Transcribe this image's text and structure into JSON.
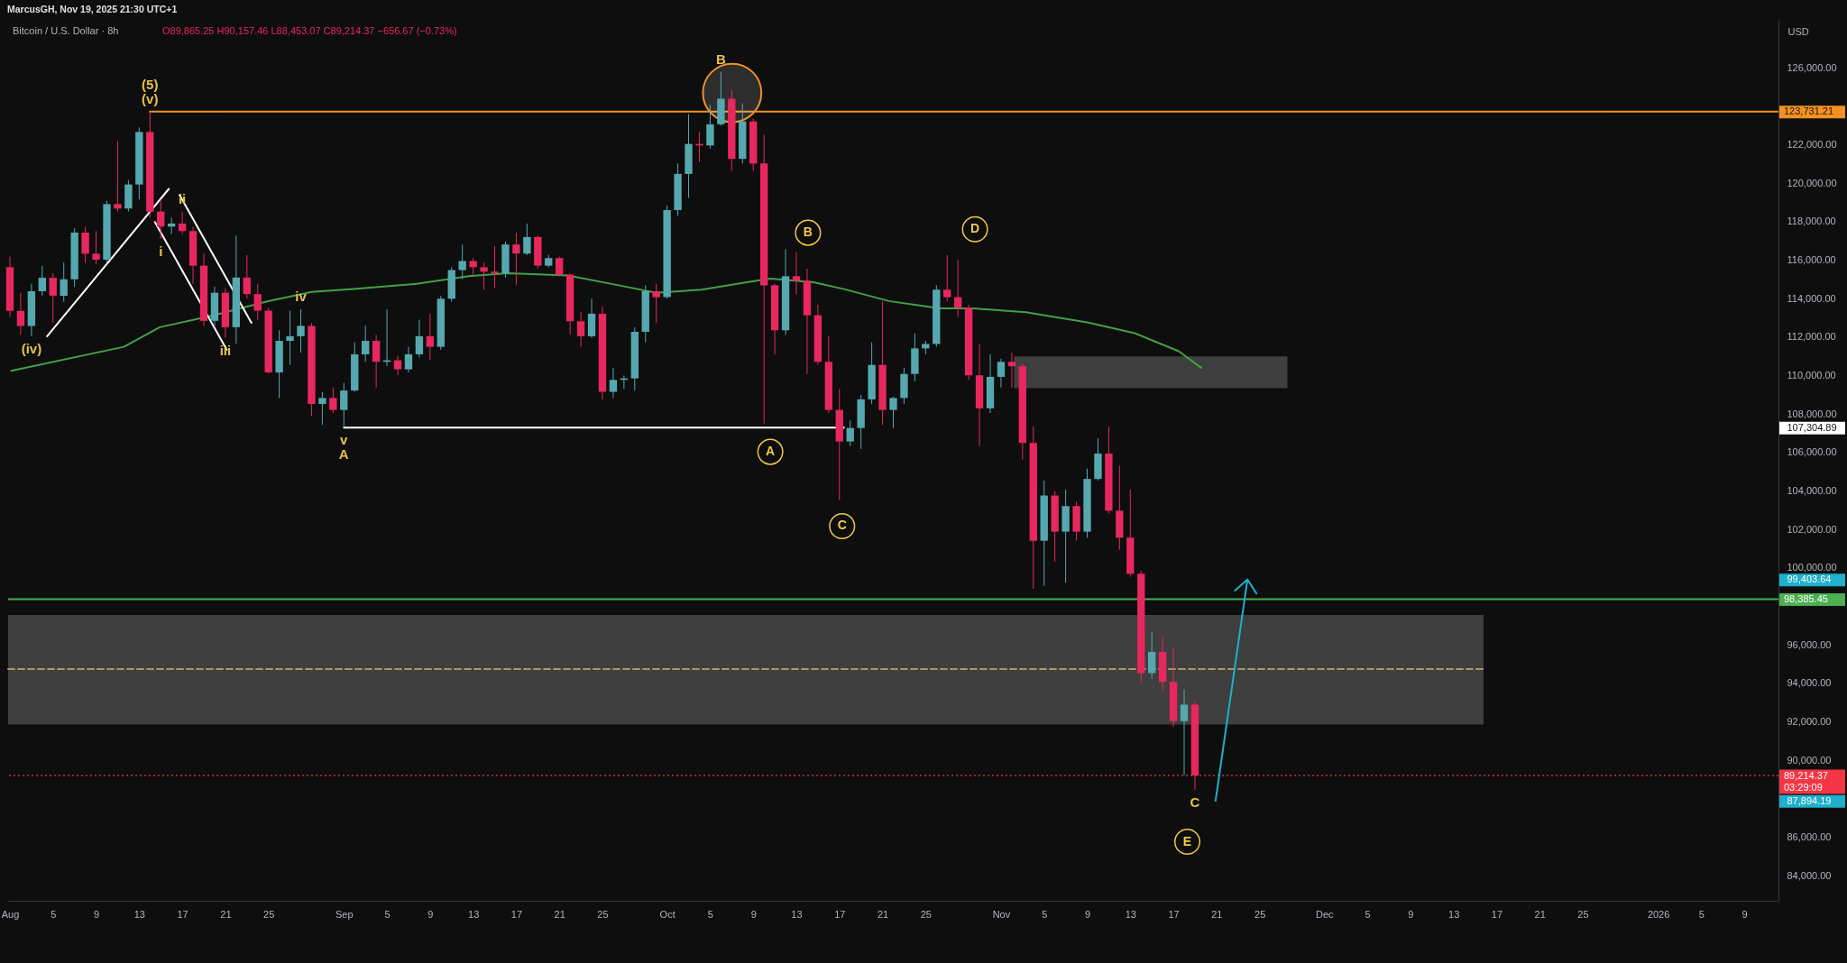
{
  "chart_data": {
    "type": "candlestick",
    "title": "Bitcoin / U.S. Dollar · 8h",
    "subtitle": "O89,865.25 H90,157.46 L88,453.07 C89,214.37 −656.67 (−0.73%)",
    "ylabel": "USD",
    "annotations": [
      "MarcusGH, Nov 19, 2025 21:30 UTC+1",
      {
        "text": "(v)",
        "x": "2025-08-14",
        "y": 123731.21
      },
      {
        "text": "(5)",
        "x": "2025-08-14",
        "y": 123731.21
      },
      {
        "text": "(iv)",
        "x": "2025-08-03",
        "y": 112050
      },
      {
        "text": "i",
        "x": "2025-08-15",
        "y": 117120
      },
      {
        "text": "ii",
        "x": "2025-08-17",
        "y": 118530
      },
      {
        "text": "iii",
        "x": "2025-08-21",
        "y": 111970
      },
      {
        "text": "iv",
        "x": "2025-08-28",
        "y": 113460
      },
      {
        "text": "v",
        "x": "2025-09-01",
        "y": 107304.89
      },
      {
        "text": "A",
        "x": "2025-09-01",
        "y": 107304.89
      },
      {
        "text": "B",
        "x": "2025-10-06",
        "y": 125800
      },
      {
        "text": "C",
        "x": "2025-11-19",
        "y": 88453.07
      }
    ],
    "xlim": [
      "2025-07-31T20:00",
      "2026-01-12T04:00"
    ],
    "ylim": [
      82700,
      128500
    ],
    "xticks": [
      {
        "value": "2025-08-01",
        "label": "Aug"
      },
      {
        "value": "2025-08-05",
        "label": "5"
      },
      {
        "value": "2025-08-09",
        "label": "9"
      },
      {
        "value": "2025-08-13",
        "label": "13"
      },
      {
        "value": "2025-08-17",
        "label": "17"
      },
      {
        "value": "2025-08-21",
        "label": "21"
      },
      {
        "value": "2025-08-25",
        "label": "25"
      },
      {
        "value": "2025-09-01",
        "label": "Sep"
      },
      {
        "value": "2025-09-05",
        "label": "5"
      },
      {
        "value": "2025-09-09",
        "label": "9"
      },
      {
        "value": "2025-09-13",
        "label": "13"
      },
      {
        "value": "2025-09-17",
        "label": "17"
      },
      {
        "value": "2025-09-21",
        "label": "21"
      },
      {
        "value": "2025-09-25",
        "label": "25"
      },
      {
        "value": "2025-10-01",
        "label": "Oct"
      },
      {
        "value": "2025-10-05",
        "label": "5"
      },
      {
        "value": "2025-10-09",
        "label": "9"
      },
      {
        "value": "2025-10-13",
        "label": "13"
      },
      {
        "value": "2025-10-17",
        "label": "17"
      },
      {
        "value": "2025-10-21",
        "label": "21"
      },
      {
        "value": "2025-10-25",
        "label": "25"
      },
      {
        "value": "2025-11-01",
        "label": "Nov"
      },
      {
        "value": "2025-11-05",
        "label": "5"
      },
      {
        "value": "2025-11-09",
        "label": "9"
      },
      {
        "value": "2025-11-13",
        "label": "13"
      },
      {
        "value": "2025-11-17",
        "label": "17"
      },
      {
        "value": "2025-11-21",
        "label": "21"
      },
      {
        "value": "2025-11-25",
        "label": "25"
      },
      {
        "value": "2025-12-01",
        "label": "Dec"
      },
      {
        "value": "2025-12-05",
        "label": "5"
      },
      {
        "value": "2025-12-09",
        "label": "9"
      },
      {
        "value": "2025-12-13",
        "label": "13"
      },
      {
        "value": "2025-12-17",
        "label": "17"
      },
      {
        "value": "2025-12-21",
        "label": "21"
      },
      {
        "value": "2025-12-25",
        "label": "25"
      },
      {
        "value": "2026-01-01",
        "label": "2026"
      },
      {
        "value": "2026-01-05",
        "label": "5"
      },
      {
        "value": "2026-01-09",
        "label": "9"
      }
    ],
    "yticks": [
      {
        "value": 84000,
        "label": "84,000.00"
      },
      {
        "value": 86000,
        "label": "86,000.00"
      },
      {
        "value": 87894.19,
        "label": "87,894.19"
      },
      {
        "value": 90000,
        "label": "90,000.00"
      },
      {
        "value": 92000,
        "label": "92,000.00"
      },
      {
        "value": 94000,
        "label": "94,000.00"
      },
      {
        "value": 96000,
        "label": "96,000.00"
      },
      {
        "value": 99403.64,
        "label": "99,403.64"
      },
      {
        "value": 100000,
        "label": "100,000.00"
      },
      {
        "value": 102000,
        "label": "102,000.00"
      },
      {
        "value": 104000,
        "label": "104,000.00"
      },
      {
        "value": 106000,
        "label": "106,000.00"
      },
      {
        "value": 107304.89,
        "label": "107,304.89"
      },
      {
        "value": 108000,
        "label": "108,000.00"
      },
      {
        "value": 110000,
        "label": "110,000.00"
      },
      {
        "value": 112000,
        "label": "112,000.00"
      },
      {
        "value": 114000,
        "label": "114,000.00"
      },
      {
        "value": 116000,
        "label": "116,000.00"
      },
      {
        "value": 118000,
        "label": "118,000.00"
      },
      {
        "value": 120000,
        "label": "120,000.00"
      },
      {
        "value": 122000,
        "label": "122,000.00"
      },
      {
        "value": 126000,
        "label": "126,000.00"
      }
    ],
    "x": [
      "2025-08-01",
      "2025-08-02",
      "2025-08-03",
      "2025-08-04",
      "2025-08-05",
      "2025-08-06",
      "2025-08-07",
      "2025-08-08",
      "2025-08-09",
      "2025-08-10",
      "2025-08-11",
      "2025-08-12",
      "2025-08-13",
      "2025-08-14",
      "2025-08-15",
      "2025-08-16",
      "2025-08-17",
      "2025-08-18",
      "2025-08-19",
      "2025-08-20",
      "2025-08-21",
      "2025-08-22",
      "2025-08-23",
      "2025-08-24",
      "2025-08-25",
      "2025-08-26",
      "2025-08-27",
      "2025-08-28",
      "2025-08-29",
      "2025-08-30",
      "2025-08-31",
      "2025-09-01",
      "2025-09-02",
      "2025-09-03",
      "2025-09-04",
      "2025-09-05",
      "2025-09-06",
      "2025-09-07",
      "2025-09-08",
      "2025-09-09",
      "2025-09-10",
      "2025-09-11",
      "2025-09-12",
      "2025-09-13",
      "2025-09-14",
      "2025-09-15",
      "2025-09-16",
      "2025-09-17",
      "2025-09-18",
      "2025-09-19",
      "2025-09-20",
      "2025-09-21",
      "2025-09-22",
      "2025-09-23",
      "2025-09-24",
      "2025-09-25",
      "2025-09-26",
      "2025-09-27",
      "2025-09-28",
      "2025-09-29",
      "2025-09-30",
      "2025-10-01",
      "2025-10-02",
      "2025-10-03",
      "2025-10-04",
      "2025-10-05",
      "2025-10-06",
      "2025-10-07",
      "2025-10-08",
      "2025-10-09",
      "2025-10-10",
      "2025-10-11",
      "2025-10-12",
      "2025-10-13",
      "2025-10-14",
      "2025-10-15",
      "2025-10-16",
      "2025-10-17",
      "2025-10-18",
      "2025-10-19",
      "2025-10-20",
      "2025-10-21",
      "2025-10-22",
      "2025-10-23",
      "2025-10-24",
      "2025-10-25",
      "2025-10-26",
      "2025-10-27",
      "2025-10-28",
      "2025-10-29",
      "2025-10-30",
      "2025-10-31",
      "2025-11-01",
      "2025-11-02",
      "2025-11-03",
      "2025-11-04",
      "2025-11-05",
      "2025-11-06",
      "2025-11-07",
      "2025-11-08",
      "2025-11-09",
      "2025-11-10",
      "2025-11-11",
      "2025-11-12",
      "2025-11-13",
      "2025-11-14",
      "2025-11-15",
      "2025-11-16",
      "2025-11-17",
      "2025-11-18",
      "2025-11-19"
    ],
    "ohlc": [
      [
        115640,
        116190,
        113060,
        113370
      ],
      [
        113370,
        114310,
        112130,
        112590
      ],
      [
        112590,
        114780,
        112050,
        114390
      ],
      [
        114390,
        115720,
        114160,
        115090
      ],
      [
        115090,
        115330,
        112750,
        114160
      ],
      [
        114160,
        115880,
        113840,
        115010
      ],
      [
        115010,
        117670,
        114620,
        117440
      ],
      [
        117440,
        117750,
        115870,
        116340
      ],
      [
        116340,
        117520,
        115800,
        116030
      ],
      [
        116030,
        119080,
        115870,
        118920
      ],
      [
        118920,
        122200,
        118530,
        118690
      ],
      [
        118690,
        120170,
        118530,
        119940
      ],
      [
        119940,
        122910,
        119160,
        122670
      ],
      [
        122670,
        123731.21,
        118220,
        118530
      ],
      [
        118530,
        119160,
        117120,
        117750
      ],
      [
        117750,
        118220,
        117360,
        117910
      ],
      [
        117910,
        118530,
        117360,
        117520
      ],
      [
        117520,
        117750,
        114780,
        115720
      ],
      [
        115720,
        116340,
        112600,
        112850
      ],
      [
        112850,
        114630,
        112520,
        114310
      ],
      [
        114310,
        114550,
        111970,
        112520
      ],
      [
        112520,
        117280,
        111660,
        115100
      ],
      [
        115100,
        116270,
        114000,
        114240
      ],
      [
        114240,
        114780,
        112910,
        113380
      ],
      [
        113380,
        113530,
        110100,
        110170
      ],
      [
        110170,
        112360,
        108840,
        111810
      ],
      [
        111810,
        113380,
        110560,
        112050
      ],
      [
        112050,
        113460,
        111190,
        112590
      ],
      [
        112590,
        112750,
        107910,
        108530
      ],
      [
        108530,
        109160,
        107440,
        108840
      ],
      [
        108840,
        109390,
        108060,
        108220
      ],
      [
        108220,
        109630,
        107304.89,
        109230
      ],
      [
        109230,
        111730,
        109160,
        111110
      ],
      [
        111110,
        112600,
        110720,
        111810
      ],
      [
        111810,
        112130,
        109390,
        110720
      ],
      [
        110720,
        113460,
        110490,
        110800
      ],
      [
        110800,
        111030,
        110020,
        110330
      ],
      [
        110330,
        111500,
        110170,
        111110
      ],
      [
        111110,
        112910,
        110950,
        112050
      ],
      [
        112050,
        113220,
        110800,
        111500
      ],
      [
        111500,
        114160,
        111340,
        114000
      ],
      [
        114000,
        115640,
        113850,
        115490
      ],
      [
        115490,
        116820,
        115020,
        115960
      ],
      [
        115960,
        116110,
        115250,
        115640
      ],
      [
        115640,
        115880,
        114470,
        115410
      ],
      [
        115410,
        116740,
        114550,
        115330
      ],
      [
        115330,
        116970,
        115100,
        116820
      ],
      [
        116820,
        117440,
        114700,
        116350
      ],
      [
        116350,
        117910,
        116270,
        117210
      ],
      [
        117210,
        117280,
        115560,
        115720
      ],
      [
        115720,
        116270,
        115640,
        116110
      ],
      [
        116110,
        116190,
        115170,
        115250
      ],
      [
        115250,
        115330,
        112130,
        112830
      ],
      [
        112830,
        113300,
        111500,
        112050
      ],
      [
        112050,
        114000,
        111970,
        113220
      ],
      [
        113220,
        113610,
        108770,
        109160
      ],
      [
        109160,
        110400,
        108840,
        109780
      ],
      [
        109780,
        110010,
        109310,
        109860
      ],
      [
        109860,
        112520,
        109230,
        112280
      ],
      [
        112280,
        114700,
        111730,
        114390
      ],
      [
        114390,
        114780,
        112750,
        114080
      ],
      [
        114080,
        118850,
        114000,
        118610
      ],
      [
        118610,
        121030,
        118300,
        120490
      ],
      [
        120490,
        123610,
        119240,
        122050
      ],
      [
        122050,
        122670,
        121110,
        121970
      ],
      [
        121970,
        124080,
        121810,
        123070
      ],
      [
        123070,
        125800,
        122990,
        124400
      ],
      [
        124400,
        124860,
        120640,
        121270
      ],
      [
        121270,
        124160,
        121030,
        123220
      ],
      [
        123220,
        123380,
        120640,
        121030
      ],
      [
        121030,
        122520,
        107510,
        114700
      ],
      [
        114700,
        114780,
        111110,
        112360
      ],
      [
        112360,
        116580,
        112120,
        115170
      ],
      [
        115170,
        116420,
        114230,
        114940
      ],
      [
        114940,
        115560,
        110090,
        113140
      ],
      [
        113140,
        113690,
        110560,
        110720
      ],
      [
        110720,
        112050,
        108060,
        108220
      ],
      [
        108220,
        109310,
        103530,
        106580
      ],
      [
        106580,
        107670,
        106340,
        107280
      ],
      [
        107280,
        109000,
        106190,
        108770
      ],
      [
        108770,
        111730,
        108530,
        110560
      ],
      [
        110560,
        113850,
        107440,
        108220
      ],
      [
        108220,
        108900,
        107280,
        108840
      ],
      [
        108840,
        110410,
        108530,
        110090
      ],
      [
        110090,
        112200,
        109700,
        111420
      ],
      [
        111420,
        111810,
        111110,
        111650
      ],
      [
        111650,
        114700,
        111500,
        114470
      ],
      [
        114470,
        116270,
        113850,
        114080
      ],
      [
        114080,
        116030,
        113060,
        113530
      ],
      [
        113530,
        113690,
        109780,
        110020
      ],
      [
        110020,
        111660,
        106340,
        108300
      ],
      [
        108300,
        111110,
        108060,
        109940
      ],
      [
        109940,
        110870,
        109390,
        110720
      ],
      [
        110720,
        111190,
        109390,
        110490
      ],
      [
        110490,
        110640,
        105640,
        106500
      ],
      [
        106500,
        107360,
        98920,
        101420
      ],
      [
        101420,
        104550,
        99080,
        103770
      ],
      [
        103770,
        104000,
        100330,
        101890
      ],
      [
        101890,
        104080,
        99230,
        103220
      ],
      [
        103220,
        103450,
        101420,
        101890
      ],
      [
        101890,
        105170,
        101580,
        104630
      ],
      [
        104630,
        106740,
        104550,
        105950
      ],
      [
        105950,
        107360,
        102830,
        102980
      ],
      [
        102980,
        105330,
        100950,
        101580
      ],
      [
        101580,
        104080,
        99550,
        99700
      ],
      [
        99700,
        99860,
        94000,
        94540
      ],
      [
        94540,
        96650,
        94230,
        95640
      ],
      [
        95640,
        96420,
        93610,
        94080
      ],
      [
        94080,
        95870,
        91730,
        92040
      ],
      [
        92040,
        93680,
        89230,
        92900
      ],
      [
        92900,
        93060,
        88453.07,
        89214.37
      ]
    ],
    "colors": [
      "#e8275f",
      "#e8275f",
      "#56a8b0",
      "#56a8b0",
      "#e8275f",
      "#56a8b0",
      "#56a8b0",
      "#e8275f",
      "#e8275f",
      "#56a8b0",
      "#e8275f",
      "#56a8b0",
      "#56a8b0",
      "#e8275f",
      "#e8275f",
      "#56a8b0",
      "#e8275f",
      "#e8275f",
      "#e8275f",
      "#56a8b0",
      "#e8275f",
      "#56a8b0",
      "#e8275f",
      "#e8275f",
      "#e8275f",
      "#56a8b0",
      "#56a8b0",
      "#56a8b0",
      "#e8275f",
      "#56a8b0",
      "#e8275f",
      "#56a8b0",
      "#56a8b0",
      "#56a8b0",
      "#e8275f",
      "#56a8b0",
      "#e8275f",
      "#56a8b0",
      "#56a8b0",
      "#e8275f",
      "#56a8b0",
      "#56a8b0",
      "#56a8b0",
      "#e8275f",
      "#e8275f",
      "#e8275f",
      "#56a8b0",
      "#e8275f",
      "#56a8b0",
      "#e8275f",
      "#56a8b0",
      "#e8275f",
      "#e8275f",
      "#e8275f",
      "#56a8b0",
      "#e8275f",
      "#56a8b0",
      "#56a8b0",
      "#56a8b0",
      "#56a8b0",
      "#e8275f",
      "#56a8b0",
      "#56a8b0",
      "#56a8b0",
      "#e8275f",
      "#56a8b0",
      "#56a8b0",
      "#e8275f",
      "#56a8b0",
      "#e8275f",
      "#e8275f",
      "#e8275f",
      "#56a8b0",
      "#e8275f",
      "#e8275f",
      "#e8275f",
      "#e8275f",
      "#e8275f",
      "#56a8b0",
      "#56a8b0",
      "#56a8b0",
      "#e8275f",
      "#56a8b0",
      "#56a8b0",
      "#56a8b0",
      "#56a8b0",
      "#56a8b0",
      "#e8275f",
      "#e8275f",
      "#e8275f",
      "#e8275f",
      "#56a8b0",
      "#56a8b0",
      "#e8275f",
      "#e8275f",
      "#e8275f",
      "#56a8b0",
      "#e8275f",
      "#56a8b0",
      "#e8275f",
      "#56a8b0",
      "#56a8b0",
      "#e8275f",
      "#e8275f",
      "#e8275f",
      "#e8275f",
      "#56a8b0",
      "#e8275f",
      "#e8275f",
      "#56a8b0",
      "#e8275f"
    ],
    "series": [
      {
        "type": "line",
        "color": "#3f3f3f",
        "x": [
          "2025-07-31T20:00",
          "2025-12-15T19:00"
        ],
        "values": [
          null,
          null
        ],
        "lower": [
          91860,
          91860
        ],
        "upper": [
          97560,
          97560
        ]
      },
      {
        "type": "line",
        "color": "#a89c62",
        "line_style": "dashed",
        "x": [
          "2025-07-31T20:00",
          "2025-12-15T19:00"
        ],
        "values": [
          94750,
          94750
        ]
      },
      {
        "type": "line",
        "color": "#3f3f3f",
        "x": [
          "2025-11-02T05:00",
          "2025-11-27T14:00"
        ],
        "values": [
          null,
          null
        ],
        "lower": [
          109350,
          109350
        ],
        "upper": [
          111000,
          111000
        ]
      },
      {
        "type": "line",
        "color": "#43a047",
        "x": [
          "2025-08-01T03:00",
          "2025-08-11T14:00",
          "2025-08-14T22:00",
          "2025-08-19T22:00",
          "2025-08-24T19:00",
          "2025-08-29T00:00",
          "2025-09-02T04:00",
          "2025-09-07T18:00",
          "2025-09-12T14:00",
          "2025-09-16T05:00",
          "2025-09-21T19:00",
          "2025-09-26T12:00",
          "2025-09-30T00:00",
          "2025-10-04T05:00",
          "2025-10-08T10:00",
          "2025-10-10T14:00",
          "2025-10-14T14:00",
          "2025-10-17T10:00",
          "2025-10-21T14:00",
          "2025-10-26T07:00",
          "2025-10-29T10:00",
          "2025-11-03T07:00",
          "2025-11-09T00:00",
          "2025-11-13T10:00",
          "2025-11-17T12:00",
          "2025-11-19T14:00"
        ],
        "values": [
          110250,
          111500,
          112520,
          113140,
          113850,
          114350,
          114520,
          114780,
          115170,
          115330,
          115210,
          114700,
          114310,
          114470,
          114860,
          115050,
          114860,
          114500,
          113880,
          113500,
          113500,
          113300,
          112770,
          112210,
          111270,
          110410
        ]
      },
      {
        "type": "line",
        "color": "#ffffff",
        "x": [
          "2025-08-04T11:00",
          "2025-08-15T18:00"
        ],
        "values": [
          112050,
          119710
        ]
      },
      {
        "type": "line",
        "color": "#ffffff",
        "x": [
          "2025-08-14T11:00",
          "2025-08-21T03:00"
        ],
        "values": [
          117990,
          111350
        ]
      },
      {
        "type": "line",
        "color": "#ffffff",
        "x": [
          "2025-08-16T18:00",
          "2025-08-23T10:00"
        ],
        "values": [
          119390,
          112750
        ]
      },
      {
        "type": "line",
        "color": "#ffffff",
        "x": [
          "2025-09-01T00:00",
          "2025-10-17T10:00"
        ],
        "values": [
          107304.89,
          107304.89
        ]
      },
      {
        "type": "line",
        "color": "#f59120",
        "x": [
          "2025-08-14T00:00",
          "2026-01-12T04:00"
        ],
        "values": [
          123731.21,
          123731.21
        ],
        "value_labels": [
          null,
          "123,731.21"
        ]
      },
      {
        "type": "line",
        "color": "#1eb0cc",
        "x": [
          "2025-11-20T22:00",
          "2025-11-23T21:00",
          "2025-11-22T17:00",
          "2025-11-23T21:00",
          "2025-11-24T17:00"
        ],
        "values": [
          87894.19,
          99403.64,
          98830,
          99403.64,
          98680
        ]
      },
      {
        "type": "bubble",
        "color": "#f0902a",
        "x": [
          "2025-10-07T01:00"
        ],
        "values": [
          124700
        ],
        "sizes": [
          1
        ]
      },
      {
        "type": "scatter",
        "name": "A",
        "marker": "circle",
        "color": "#f2c94c",
        "x": [
          "2025-10-10T14:00"
        ],
        "values": [
          106040
        ]
      },
      {
        "type": "scatter",
        "name": "B",
        "marker": "circle",
        "color": "#f2c94c",
        "x": [
          "2025-10-14T02:00"
        ],
        "values": [
          117430
        ]
      },
      {
        "type": "scatter",
        "name": "C",
        "marker": "circle",
        "color": "#f2c94c",
        "x": [
          "2025-10-17T06:00"
        ],
        "values": [
          102180
        ]
      },
      {
        "type": "scatter",
        "name": "D",
        "marker": "circle",
        "color": "#f2c94c",
        "x": [
          "2025-10-29T14:00"
        ],
        "values": [
          117610
        ]
      },
      {
        "type": "scatter",
        "name": "E",
        "marker": "circle",
        "color": "#f2c94c",
        "x": [
          "2025-11-18T07:00"
        ],
        "values": [
          85770
        ]
      }
    ],
    "ref_lines": [
      {
        "axis": "y",
        "value": 98385.45,
        "label": "98,385.45",
        "color": "#4caf50"
      },
      {
        "axis": "y",
        "value": 89214.37,
        "label": "89,214.37\n03:29:09",
        "color": "#f23645",
        "line_style": "dotted"
      }
    ]
  }
}
